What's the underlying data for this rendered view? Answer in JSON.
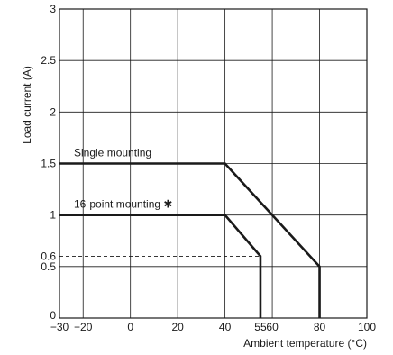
{
  "chart_data": {
    "type": "line",
    "xlabel": "Ambient temperature (°C)",
    "ylabel": "Load current (A)",
    "xlim": [
      -30,
      100
    ],
    "ylim": [
      0,
      3
    ],
    "grid": true,
    "x_ticks": [
      {
        "value": -30,
        "label": "−30"
      },
      {
        "value": -20,
        "label": "−20"
      },
      {
        "value": 0,
        "label": "0"
      },
      {
        "value": 20,
        "label": "20"
      },
      {
        "value": 40,
        "label": "40"
      },
      {
        "value": 55,
        "label": "55"
      },
      {
        "value": 60,
        "label": "60"
      },
      {
        "value": 80,
        "label": "80"
      },
      {
        "value": 100,
        "label": "100"
      }
    ],
    "x_grid": [
      -20,
      0,
      20,
      40,
      60,
      80,
      100
    ],
    "y_ticks": [
      {
        "value": 0,
        "label": "0"
      },
      {
        "value": 0.5,
        "label": "0.5"
      },
      {
        "value": 0.6,
        "label": "0.6"
      },
      {
        "value": 1,
        "label": "1"
      },
      {
        "value": 1.5,
        "label": "1.5"
      },
      {
        "value": 2,
        "label": "2"
      },
      {
        "value": 2.5,
        "label": "2.5"
      },
      {
        "value": 3,
        "label": "3"
      }
    ],
    "y_grid": [
      0.5,
      1,
      1.5,
      2,
      2.5
    ],
    "series": [
      {
        "name": "Single mounting",
        "points": [
          [
            -30,
            1.5
          ],
          [
            40,
            1.5
          ],
          [
            80,
            0.5
          ],
          [
            80,
            0
          ]
        ]
      },
      {
        "name": "16-point mounting ✱",
        "points": [
          [
            -30,
            1
          ],
          [
            40,
            1
          ],
          [
            55,
            0.6
          ],
          [
            55,
            0
          ]
        ]
      }
    ],
    "reference_line": {
      "y": 0.6,
      "x_from": -30,
      "x_to": 55,
      "style": "dashed"
    }
  }
}
